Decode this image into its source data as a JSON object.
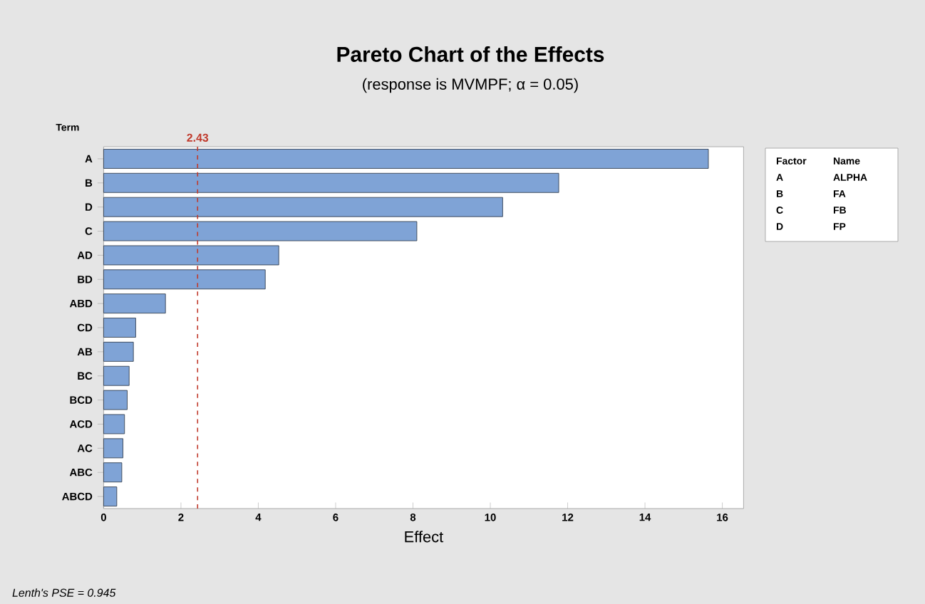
{
  "chart_data": {
    "type": "bar",
    "orientation": "horizontal",
    "title": "Pareto Chart of the Effects",
    "subtitle": "(response is MVMPF; α = 0.05)",
    "xlabel": "Effect",
    "ylabel": "Term",
    "categories": [
      "A",
      "B",
      "D",
      "C",
      "AD",
      "BD",
      "ABD",
      "CD",
      "AB",
      "BC",
      "BCD",
      "ACD",
      "AC",
      "ABC",
      "ABCD"
    ],
    "values": [
      15.64,
      11.77,
      10.32,
      8.1,
      4.53,
      4.18,
      1.6,
      0.83,
      0.77,
      0.66,
      0.61,
      0.54,
      0.5,
      0.47,
      0.34
    ],
    "color": "#7fa3d6",
    "xlim": [
      0,
      16.55
    ],
    "xticks": [
      0,
      2,
      4,
      6,
      8,
      10,
      12,
      14,
      16
    ],
    "ref_lines": [
      {
        "axis": "x",
        "value": 2.43,
        "label": "2.43",
        "color": "#c0392b",
        "line_style": "dashed"
      }
    ],
    "annotations": [
      "Factor",
      "Name",
      "A",
      "ALPHA",
      "B",
      "FA",
      "C",
      "FB",
      "D",
      "FP",
      "Lenth's PSE = 0.945"
    ]
  }
}
